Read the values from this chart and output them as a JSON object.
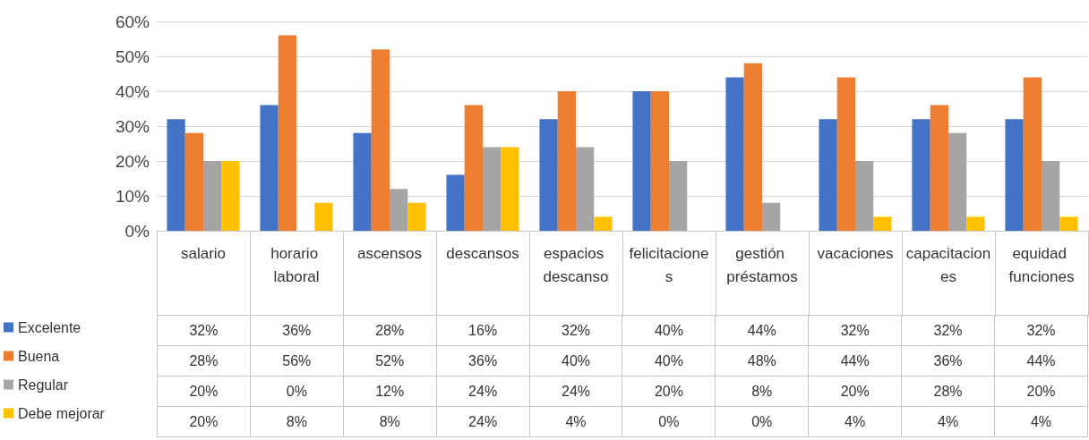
{
  "chart_data": {
    "type": "bar",
    "categories": [
      "salario",
      "horario laboral",
      "ascensos",
      "descansos",
      "espacios descanso",
      "felicitaciones",
      "gestión préstamos",
      "vacaciones",
      "capacitaciones",
      "equidad funciones"
    ],
    "series": [
      {
        "name": "Excelente",
        "color": "#4472c4",
        "values": [
          32,
          36,
          28,
          16,
          32,
          40,
          44,
          32,
          32,
          32
        ],
        "value_labels": [
          "32%",
          "36%",
          "28%",
          "16%",
          "32%",
          "40%",
          "44%",
          "32%",
          "32%",
          "32%"
        ]
      },
      {
        "name": "Buena",
        "color": "#ed7d31",
        "values": [
          28,
          56,
          52,
          36,
          40,
          40,
          48,
          44,
          36,
          44
        ],
        "value_labels": [
          "28%",
          "56%",
          "52%",
          "36%",
          "40%",
          "40%",
          "48%",
          "44%",
          "36%",
          "44%"
        ]
      },
      {
        "name": "Regular",
        "color": "#a5a5a5",
        "values": [
          20,
          0,
          12,
          24,
          24,
          20,
          8,
          20,
          28,
          20
        ],
        "value_labels": [
          "20%",
          "0%",
          "12%",
          "24%",
          "24%",
          "20%",
          "8%",
          "20%",
          "28%",
          "20%"
        ]
      },
      {
        "name": "Debe mejorar",
        "color": "#ffc000",
        "values": [
          20,
          8,
          8,
          24,
          4,
          0,
          0,
          4,
          4,
          4
        ],
        "value_labels": [
          "20%",
          "8%",
          "8%",
          "24%",
          "4%",
          "0%",
          "0%",
          "4%",
          "4%",
          "4%"
        ]
      }
    ],
    "ylim": [
      0,
      60
    ],
    "yticks": [
      {
        "value": 0,
        "label": "0%"
      },
      {
        "value": 10,
        "label": "10%"
      },
      {
        "value": 20,
        "label": "20%"
      },
      {
        "value": 30,
        "label": "30%"
      },
      {
        "value": 40,
        "label": "40%"
      },
      {
        "value": 50,
        "label": "50%"
      },
      {
        "value": 60,
        "label": "60%"
      }
    ],
    "grid": "y",
    "legend": "bottom left"
  }
}
